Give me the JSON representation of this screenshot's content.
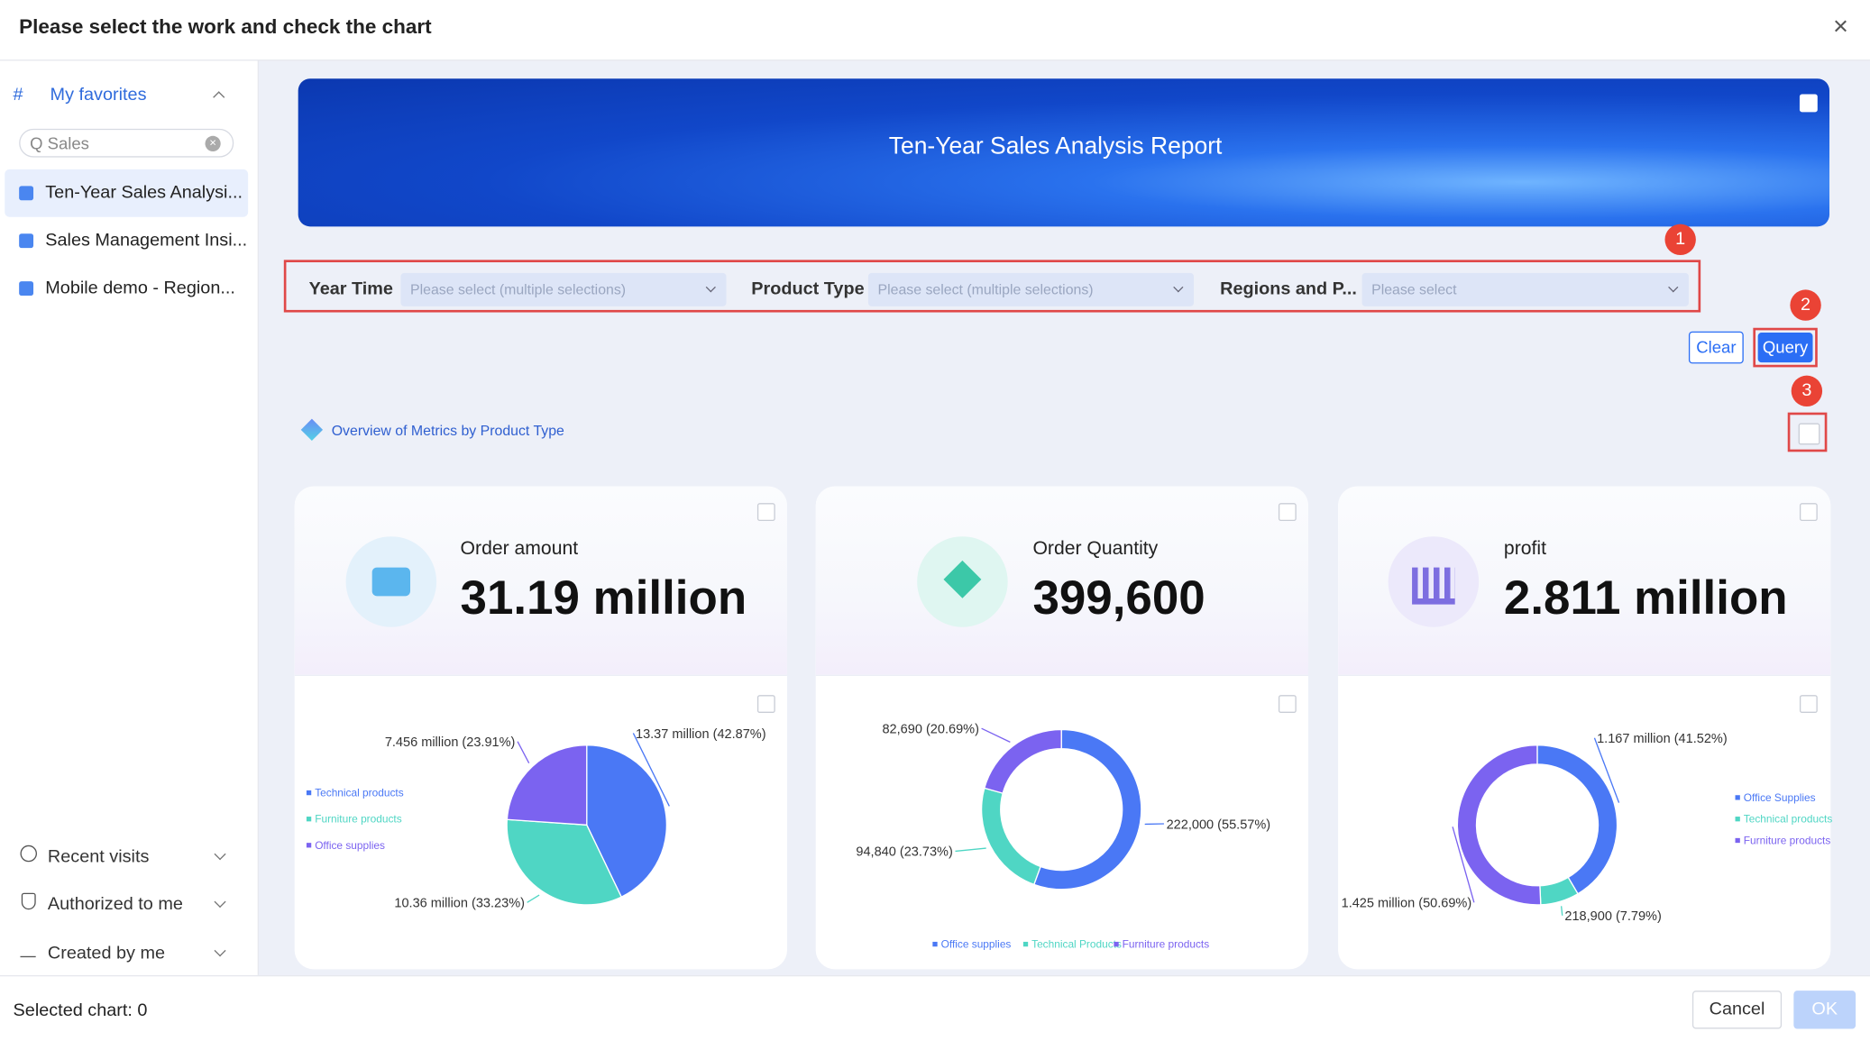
{
  "dialog": {
    "title": "Please select the work and check the chart",
    "selected": "Selected chart: 0",
    "cancel": "Cancel",
    "ok": "OK"
  },
  "sidebar": {
    "favorites": "My favorites",
    "search": "Q Sales",
    "items": [
      "Ten-Year Sales Analysi...",
      "Sales Management Insi...",
      "Mobile demo - Region..."
    ],
    "sections": [
      "Recent visits",
      "Authorized to me",
      "Created by me"
    ]
  },
  "banner": {
    "title": "Ten-Year Sales Analysis Report"
  },
  "filters": [
    {
      "label": "Year Time",
      "placeholder": "Please select (multiple selections)"
    },
    {
      "label": "Product Type",
      "placeholder": "Please select (multiple selections)"
    },
    {
      "label": "Regions and P...",
      "placeholder": "Please select"
    }
  ],
  "buttons": {
    "clear": "Clear",
    "query": "Query"
  },
  "markers": [
    "1",
    "2",
    "3"
  ],
  "section_title": "Overview of Metrics by Product Type",
  "kpis": [
    {
      "label": "Order amount",
      "value": "31.19 million"
    },
    {
      "label": "Order Quantity",
      "value": "399,600"
    },
    {
      "label": "profit",
      "value": "2.811 million"
    }
  ],
  "chart_data": [
    {
      "type": "pie",
      "categories": [
        "Technical products",
        "Furniture products",
        "Office supplies"
      ],
      "values": [
        42.87,
        33.23,
        23.91
      ],
      "value_labels": [
        "13.37 million (42.87%)",
        "10.36 million (33.23%)",
        "7.456 million (23.91%)"
      ],
      "colors": [
        "#4a78f5",
        "#4fd6c4",
        "#7b63f0"
      ]
    },
    {
      "type": "donut",
      "categories": [
        "Office supplies",
        "Technical Products",
        "Furniture products"
      ],
      "values": [
        55.57,
        23.73,
        20.69
      ],
      "value_labels": [
        "222,000 (55.57%)",
        "94,840 (23.73%)",
        "82,690 (20.69%)"
      ],
      "colors": [
        "#4a78f5",
        "#4fd6c4",
        "#7b63f0"
      ]
    },
    {
      "type": "donut",
      "categories": [
        "Office Supplies",
        "Technical products",
        "Furniture products"
      ],
      "values": [
        41.52,
        7.79,
        50.69
      ],
      "value_labels": [
        "1.167 million (41.52%)",
        "218,900 (7.79%)",
        "1.425 million (50.69%)"
      ],
      "colors": [
        "#4a78f5",
        "#4fd6c4",
        "#7b63f0"
      ]
    }
  ]
}
